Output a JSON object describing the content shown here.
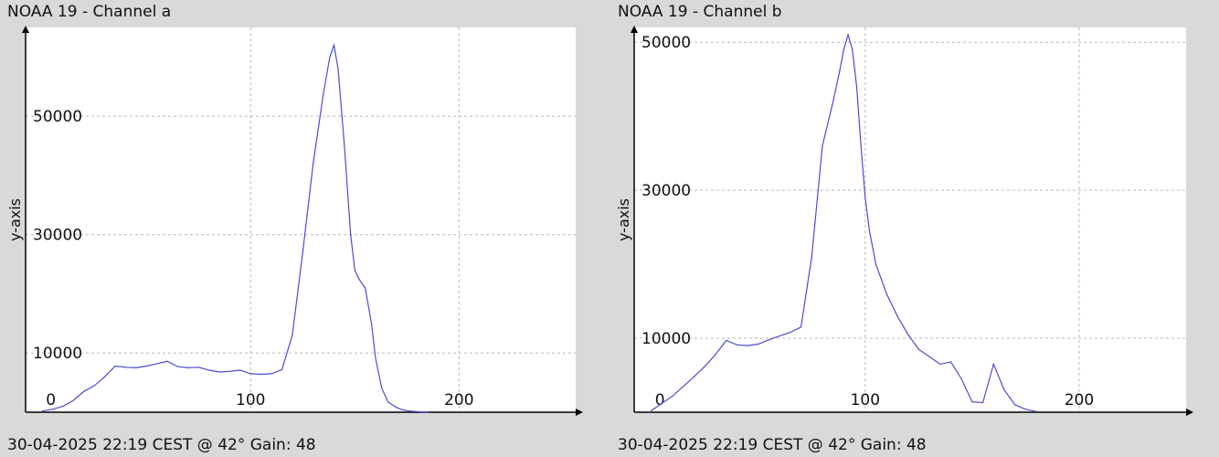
{
  "footer_text": "30-04-2025 22:19 CEST @ 42° Gain: 48",
  "colors": {
    "background": "#d9d9d9",
    "plot_bg": "#ffffff",
    "line": "#4b4bd6",
    "grid": "#b8b8b8",
    "axis": "#000000"
  },
  "chart_data": [
    {
      "type": "line",
      "title": "NOAA 19 - Channel a",
      "ylabel": "y-axis",
      "xlabel": "",
      "xlim": [
        -8,
        256
      ],
      "ylim": [
        0,
        65000
      ],
      "xticks": [
        0,
        100,
        200
      ],
      "yticks": [
        10000,
        30000,
        50000
      ],
      "grid": true,
      "series": [
        {
          "x": [
            0,
            5,
            10,
            15,
            20,
            25,
            30,
            35,
            40,
            45,
            50,
            55,
            60,
            65,
            70,
            75,
            80,
            85,
            90,
            95,
            100,
            105,
            110,
            115,
            120,
            125,
            130,
            135,
            138,
            140,
            142,
            145,
            148,
            150,
            152,
            155,
            158,
            160,
            163,
            166,
            170,
            173,
            176,
            180,
            183,
            185
          ],
          "y": [
            200,
            500,
            1000,
            2000,
            3500,
            4500,
            6000,
            7800,
            7600,
            7500,
            7800,
            8200,
            8600,
            7700,
            7500,
            7600,
            7100,
            6800,
            6900,
            7100,
            6500,
            6400,
            6500,
            7200,
            13000,
            27000,
            42000,
            54000,
            60000,
            62000,
            58000,
            45000,
            30000,
            24000,
            22500,
            21000,
            15000,
            9000,
            4000,
            1700,
            800,
            400,
            200,
            100,
            50,
            20
          ]
        }
      ]
    },
    {
      "type": "line",
      "title": "NOAA 19 - Channel b",
      "ylabel": "y-axis",
      "xlabel": "",
      "xlim": [
        -8,
        250
      ],
      "ylim": [
        0,
        52000
      ],
      "xticks": [
        0,
        100,
        200
      ],
      "yticks": [
        10000,
        30000,
        50000
      ],
      "grid": true,
      "series": [
        {
          "x": [
            0,
            5,
            10,
            15,
            20,
            25,
            30,
            35,
            40,
            45,
            50,
            55,
            60,
            65,
            70,
            75,
            80,
            85,
            88,
            90,
            92,
            94,
            96,
            98,
            100,
            102,
            105,
            110,
            115,
            120,
            125,
            130,
            135,
            140,
            145,
            150,
            155,
            160,
            165,
            170,
            175,
            180
          ],
          "y": [
            200,
            1200,
            2200,
            3500,
            4800,
            6200,
            7800,
            9700,
            9100,
            9000,
            9200,
            9800,
            10300,
            10800,
            11500,
            21000,
            36000,
            42000,
            46000,
            49000,
            51000,
            49000,
            44000,
            36000,
            29000,
            24500,
            20000,
            16000,
            13000,
            10500,
            8500,
            7500,
            6500,
            6800,
            4500,
            1400,
            1300,
            6500,
            3000,
            1000,
            400,
            100
          ]
        }
      ]
    }
  ]
}
